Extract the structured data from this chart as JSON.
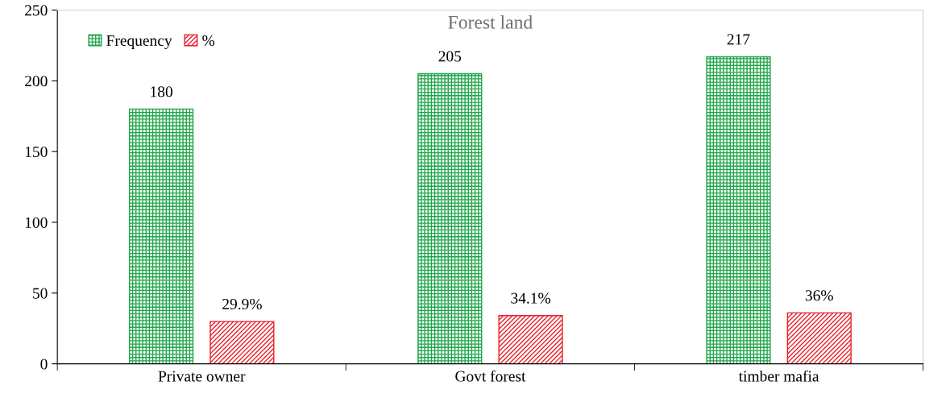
{
  "chart_data": {
    "type": "bar",
    "title": "Forest land",
    "categories": [
      "Private owner",
      "Govt forest",
      "timber mafia"
    ],
    "series": [
      {
        "name": "Frequency",
        "color": "#1fa64a",
        "values": [
          180,
          205,
          217
        ],
        "value_labels": [
          "180",
          "205",
          "217"
        ]
      },
      {
        "name": "%",
        "color": "#e8202a",
        "values": [
          29.9,
          34.1,
          36
        ],
        "value_labels": [
          "29.9%",
          "34.1%",
          "36%"
        ]
      }
    ],
    "ylim": [
      0,
      250
    ],
    "yticks": [
      0,
      50,
      100,
      150,
      200,
      250
    ],
    "grid": false,
    "legend": "top left"
  }
}
